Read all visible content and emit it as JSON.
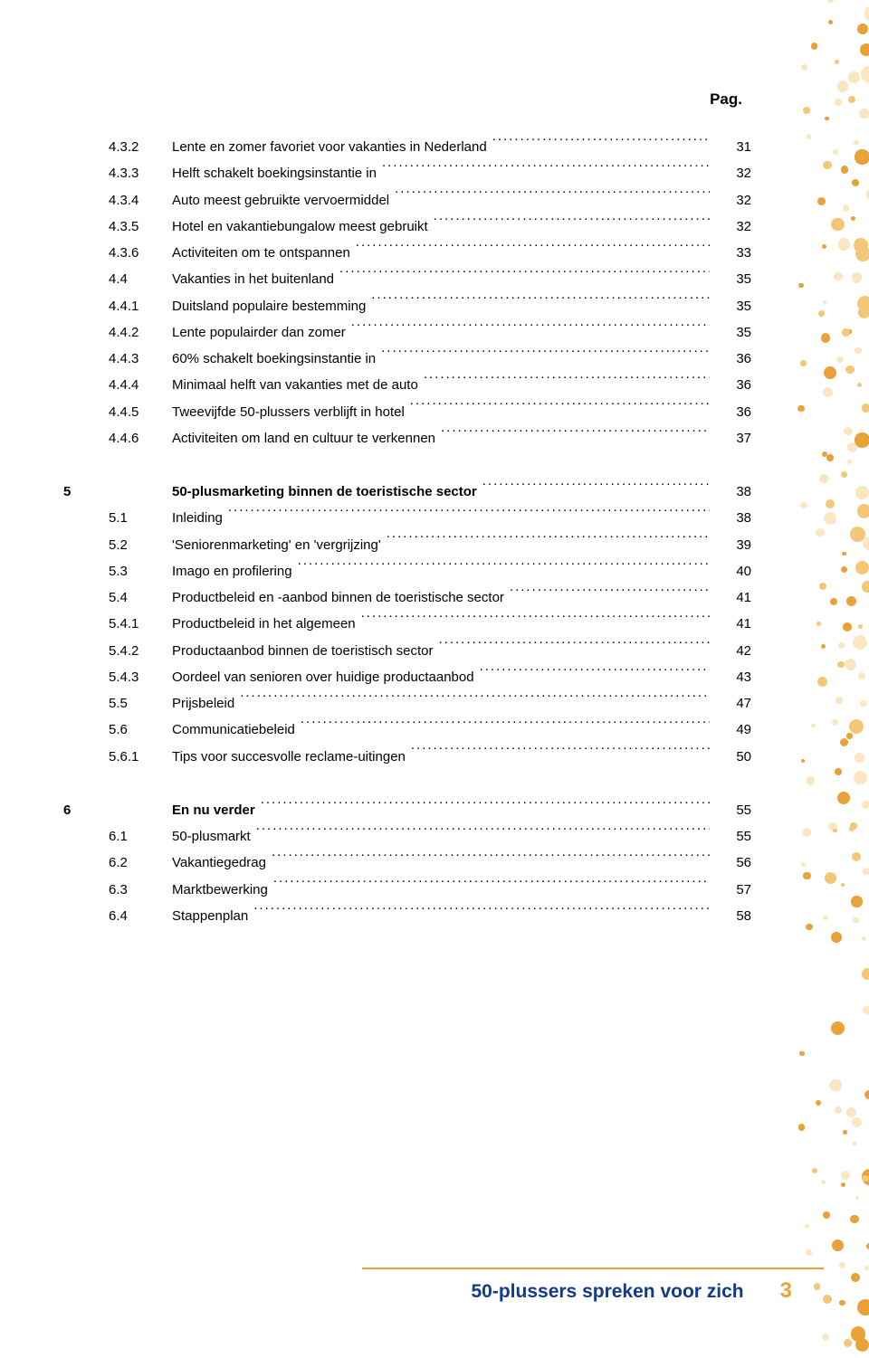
{
  "header": {
    "pag_label": "Pag."
  },
  "blocks": [
    {
      "chapter": "",
      "rows": [
        {
          "num": "4.3.2",
          "title": "Lente en zomer favoriet voor vakanties in Nederland",
          "page": "31",
          "bold": false
        },
        {
          "num": "4.3.3",
          "title": "Helft schakelt boekingsinstantie in",
          "page": "32",
          "bold": false
        },
        {
          "num": "4.3.4",
          "title": "Auto meest gebruikte vervoermiddel",
          "page": "32",
          "bold": false
        },
        {
          "num": "4.3.5",
          "title": "Hotel en vakantiebungalow meest gebruikt",
          "page": "32",
          "bold": false
        },
        {
          "num": "4.3.6",
          "title": "Activiteiten om te ontspannen",
          "page": "33",
          "bold": false
        },
        {
          "num": "4.4",
          "title": "Vakanties in het buitenland",
          "page": "35",
          "bold": false
        },
        {
          "num": "4.4.1",
          "title": "Duitsland populaire bestemming",
          "page": "35",
          "bold": false
        },
        {
          "num": "4.4.2",
          "title": "Lente populairder dan zomer",
          "page": "35",
          "bold": false
        },
        {
          "num": "4.4.3",
          "title": "60% schakelt boekingsinstantie in",
          "page": "36",
          "bold": false
        },
        {
          "num": "4.4.4",
          "title": "Minimaal helft van vakanties met de auto",
          "page": "36",
          "bold": false
        },
        {
          "num": "4.4.5",
          "title": "Tweevijfde 50-plussers verblijft in hotel",
          "page": "36",
          "bold": false
        },
        {
          "num": "4.4.6",
          "title": "Activiteiten om land en cultuur te verkennen",
          "page": "37",
          "bold": false
        }
      ]
    },
    {
      "chapter": "5",
      "rows": [
        {
          "num": "",
          "title": "50-plusmarketing binnen de toeristische sector",
          "page": "38",
          "bold": true
        },
        {
          "num": "5.1",
          "title": "Inleiding",
          "page": "38",
          "bold": false
        },
        {
          "num": "5.2",
          "title": "'Seniorenmarketing' en 'vergrijzing'",
          "page": "39",
          "bold": false
        },
        {
          "num": "5.3",
          "title": "Imago en profilering",
          "page": "40",
          "bold": false
        },
        {
          "num": "5.4",
          "title": "Productbeleid en -aanbod binnen de toeristische sector",
          "page": "41",
          "bold": false
        },
        {
          "num": "5.4.1",
          "title": "Productbeleid in het algemeen",
          "page": "41",
          "bold": false
        },
        {
          "num": "5.4.2",
          "title": "Productaanbod binnen de toeristisch sector",
          "page": "42",
          "bold": false
        },
        {
          "num": "5.4.3",
          "title": "Oordeel van senioren over huidige productaanbod",
          "page": "43",
          "bold": false
        },
        {
          "num": "5.5",
          "title": "Prijsbeleid",
          "page": "47",
          "bold": false
        },
        {
          "num": "5.6",
          "title": "Communicatiebeleid",
          "page": "49",
          "bold": false
        },
        {
          "num": "5.6.1",
          "title": "Tips voor succesvolle reclame-uitingen",
          "page": "50",
          "bold": false
        }
      ]
    },
    {
      "chapter": "6",
      "rows": [
        {
          "num": "",
          "title": "En nu verder",
          "page": "55",
          "bold": true
        },
        {
          "num": "6.1",
          "title": "50-plusmarkt",
          "page": "55",
          "bold": false
        },
        {
          "num": "6.2",
          "title": "Vakantiegedrag",
          "page": "56",
          "bold": false
        },
        {
          "num": "6.3",
          "title": "Marktbewerking",
          "page": "57",
          "bold": false
        },
        {
          "num": "6.4",
          "title": "Stappenplan",
          "page": "58",
          "bold": false
        }
      ]
    }
  ],
  "footer": {
    "title": "50-plussers spreken voor zich",
    "page_number": "3",
    "line_color": "#e8a23a",
    "title_color": "#143a8c",
    "pageno_color": "#e8a23a"
  },
  "decoration": {
    "dot_colors": [
      "#e8a23a",
      "#f4c678",
      "#fbe6c2"
    ],
    "dot_size_min": 4,
    "dot_size_max": 18
  }
}
